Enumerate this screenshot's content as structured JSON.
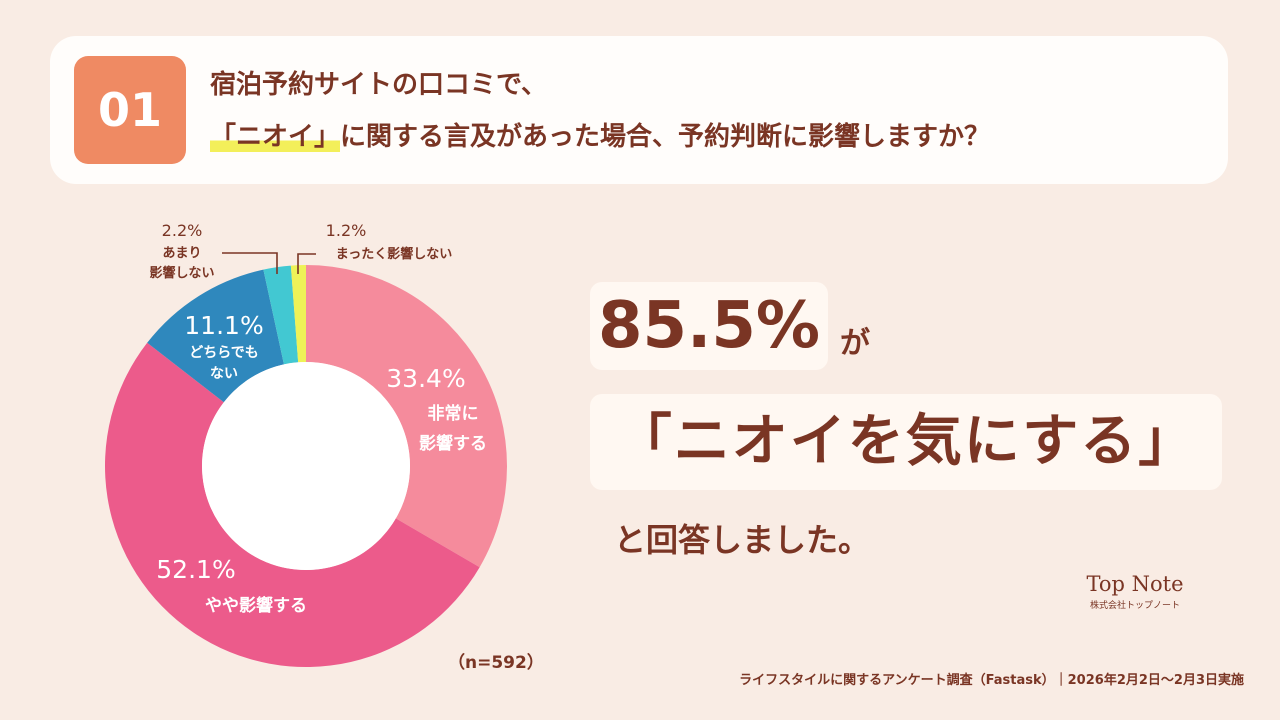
{
  "question": {
    "number": "01",
    "line1": "宿泊予約サイトの口コミで、",
    "highlight": "「ニオイ」",
    "line2_rest": "に関する言及があった場合、予約判断に影響しますか？"
  },
  "chart_data": {
    "type": "pie",
    "donut": true,
    "categories": [
      "非常に影響する",
      "やや影響する",
      "どちらでもない",
      "あまり影響しない",
      "まったく影響しない"
    ],
    "values": [
      33.4,
      52.1,
      11.1,
      2.2,
      1.2
    ],
    "colors": [
      "#f58b9c",
      "#ec5b8b",
      "#2f88bd",
      "#42c8d2",
      "#eef257"
    ],
    "labels": [
      {
        "pct": "33.4%",
        "text_lines": [
          "非常に",
          "影響する"
        ]
      },
      {
        "pct": "52.1%",
        "text_lines": [
          "やや影響する"
        ]
      },
      {
        "pct": "11.1%",
        "text_lines": [
          "どちらでも",
          "ない"
        ]
      },
      {
        "pct": "2.2%",
        "text_lines": [
          "あまり",
          "影響しない"
        ]
      },
      {
        "pct": "1.2%",
        "text_lines": [
          "まったく影響しない"
        ]
      }
    ],
    "sample": "（n=592）"
  },
  "result": {
    "pct": "85.5%",
    "ga": "が",
    "quote": "「ニオイを気にする」",
    "answered": "と回答しました。"
  },
  "logo": {
    "main": "Top Note",
    "sub": "株式会社トップノート"
  },
  "footer": "ライフスタイルに関するアンケート調査（Fastask）｜2026年2月2日〜2月3日実施"
}
